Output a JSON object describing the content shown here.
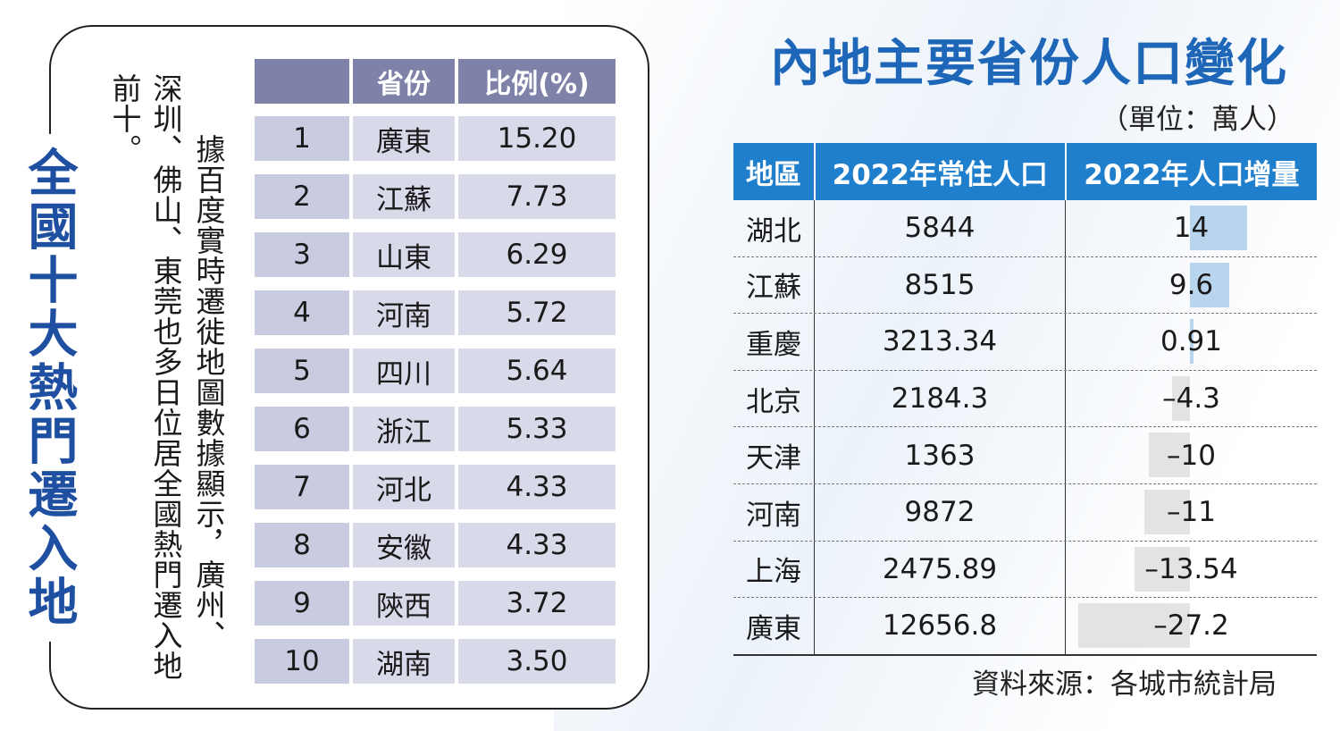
{
  "left": {
    "title": "全國十大熱門遷入地",
    "paragraph_1": "據百度實時遷徙地圖數據顯示，廣州、",
    "paragraph_2": "深圳、佛山、東莞也多日位居全國熱門遷入地前十。",
    "headers": [
      "",
      "省份",
      "比例(%)"
    ],
    "rows": [
      {
        "rank": "1",
        "province": "廣東",
        "ratio": "15.20"
      },
      {
        "rank": "2",
        "province": "江蘇",
        "ratio": "7.73"
      },
      {
        "rank": "3",
        "province": "山東",
        "ratio": "6.29"
      },
      {
        "rank": "4",
        "province": "河南",
        "ratio": "5.72"
      },
      {
        "rank": "5",
        "province": "四川",
        "ratio": "5.64"
      },
      {
        "rank": "6",
        "province": "浙江",
        "ratio": "5.33"
      },
      {
        "rank": "7",
        "province": "河北",
        "ratio": "4.33"
      },
      {
        "rank": "8",
        "province": "安徽",
        "ratio": "4.33"
      },
      {
        "rank": "9",
        "province": "陝西",
        "ratio": "3.72"
      },
      {
        "rank": "10",
        "province": "湖南",
        "ratio": "3.50"
      }
    ]
  },
  "right": {
    "title": "內地主要省份人口變化",
    "unit": "（單位：萬人）",
    "headers": [
      "地區",
      "2022年常住人口",
      "2022年人口增量"
    ],
    "source": "資料來源：各城市統計局"
  },
  "chart_data": {
    "type": "bar",
    "title": "內地主要省份人口變化",
    "categories": [
      "湖北",
      "江蘇",
      "重慶",
      "北京",
      "天津",
      "河南",
      "上海",
      "廣東"
    ],
    "population_2022": [
      "5844",
      "8515",
      "3213.34",
      "2184.3",
      "1363",
      "9872",
      "2475.89",
      "12656.8"
    ],
    "increase_labels": [
      "14",
      "9.6",
      "0.91",
      "–4.3",
      "–10",
      "–11",
      "–13.54",
      "–27.2"
    ],
    "series": [
      {
        "values": [
          14,
          9.6,
          0.91,
          -4.3,
          -10,
          -11,
          -13.54,
          -27.2
        ]
      }
    ],
    "colors": {
      "positive": "#b9d5ee",
      "negative": "#e3e3e3",
      "header": "#1f7fcc"
    }
  }
}
